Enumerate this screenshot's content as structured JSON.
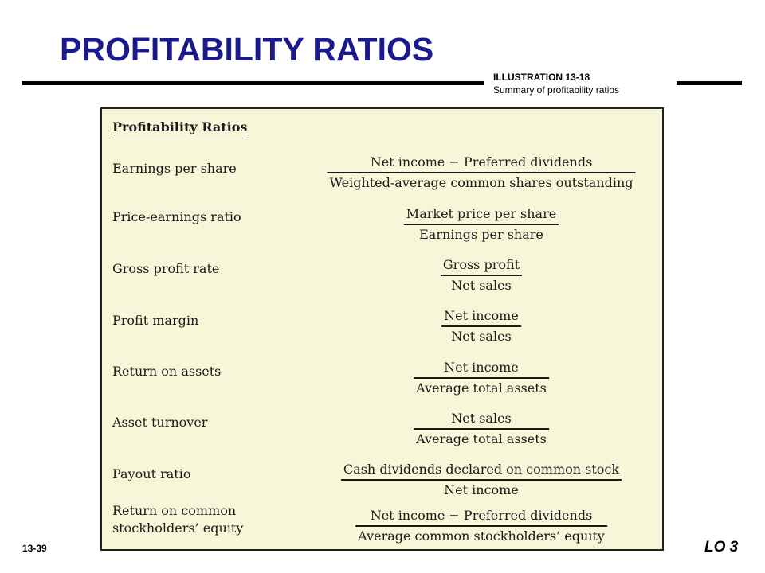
{
  "slide": {
    "title": "PROFITABILITY RATIOS",
    "illustration_number": "ILLUSTRATION 13-18",
    "illustration_caption": "Summary of profitability ratios",
    "page_number": "13-39",
    "learning_objective": "LO 3"
  },
  "table": {
    "heading": "Profitability Ratios",
    "rows": [
      {
        "name": [
          "Earnings per share"
        ],
        "numerator": "Net income − Preferred dividends",
        "denominator": "Weighted-average common shares outstanding"
      },
      {
        "name": [
          "Price-earnings ratio"
        ],
        "numerator": "Market price per share",
        "denominator": "Earnings per share"
      },
      {
        "name": [
          "Gross profit rate"
        ],
        "numerator": "Gross profit",
        "denominator": "Net sales"
      },
      {
        "name": [
          "Profit margin"
        ],
        "numerator": "Net income",
        "denominator": "Net sales"
      },
      {
        "name": [
          "Return on assets"
        ],
        "numerator": "Net income",
        "denominator": "Average total assets"
      },
      {
        "name": [
          "Asset turnover"
        ],
        "numerator": "Net sales",
        "denominator": "Average total assets"
      },
      {
        "name": [
          "Payout ratio"
        ],
        "numerator": "Cash dividends declared on common stock",
        "denominator": "Net income"
      },
      {
        "name": [
          "Return on common",
          "stockholders’ equity"
        ],
        "numerator": "Net income − Preferred dividends",
        "denominator": "Average common stockholders’ equity"
      }
    ]
  }
}
